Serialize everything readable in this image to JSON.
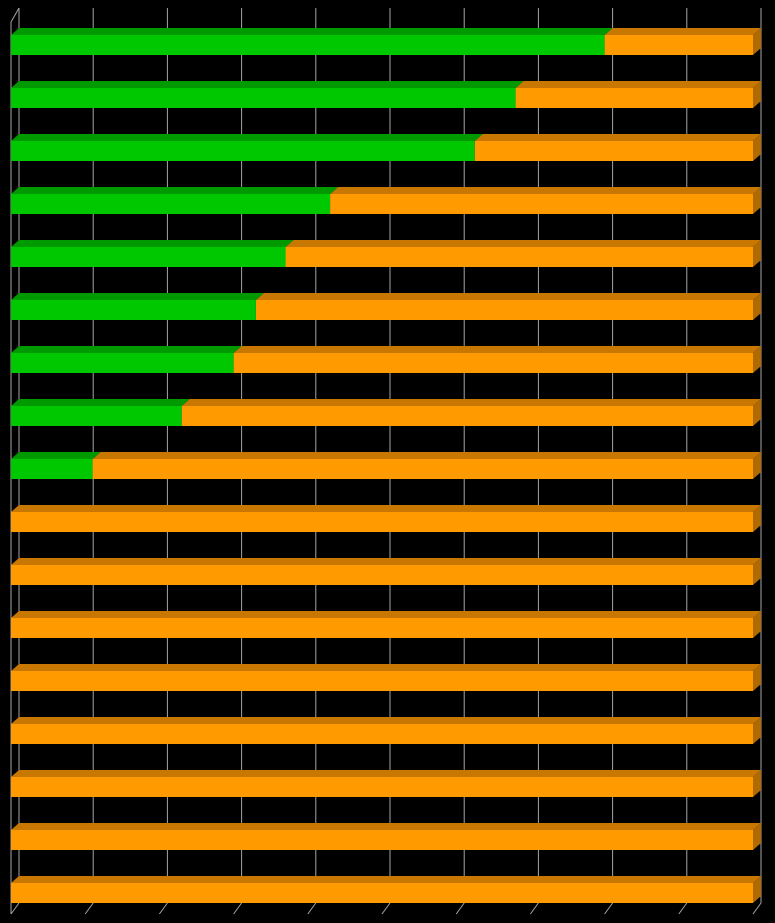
{
  "chart_data": {
    "type": "bar",
    "orientation": "horizontal",
    "stacked": true,
    "percent_stacked": true,
    "three_d": true,
    "grid": true,
    "xlim": [
      0,
      100
    ],
    "x_gridline_step": 10,
    "category_count": 17,
    "series": [
      {
        "values": [
          80,
          68,
          62.5,
          43,
          37,
          33,
          30,
          23,
          11,
          0,
          0,
          0,
          0,
          0,
          0,
          0,
          0
        ]
      },
      {
        "values": [
          20,
          32,
          37.5,
          57,
          63,
          67,
          70,
          77,
          89,
          100,
          100,
          100,
          100,
          100,
          100,
          100,
          100
        ]
      }
    ],
    "colors": {
      "series_1": "#00c800",
      "series_1_top": "#009a00",
      "series_2": "#ff9a00",
      "series_2_top": "#c87800",
      "series_2_side": "#b06a00",
      "background": "#000000",
      "gridlines": "#a6a6a6"
    }
  }
}
